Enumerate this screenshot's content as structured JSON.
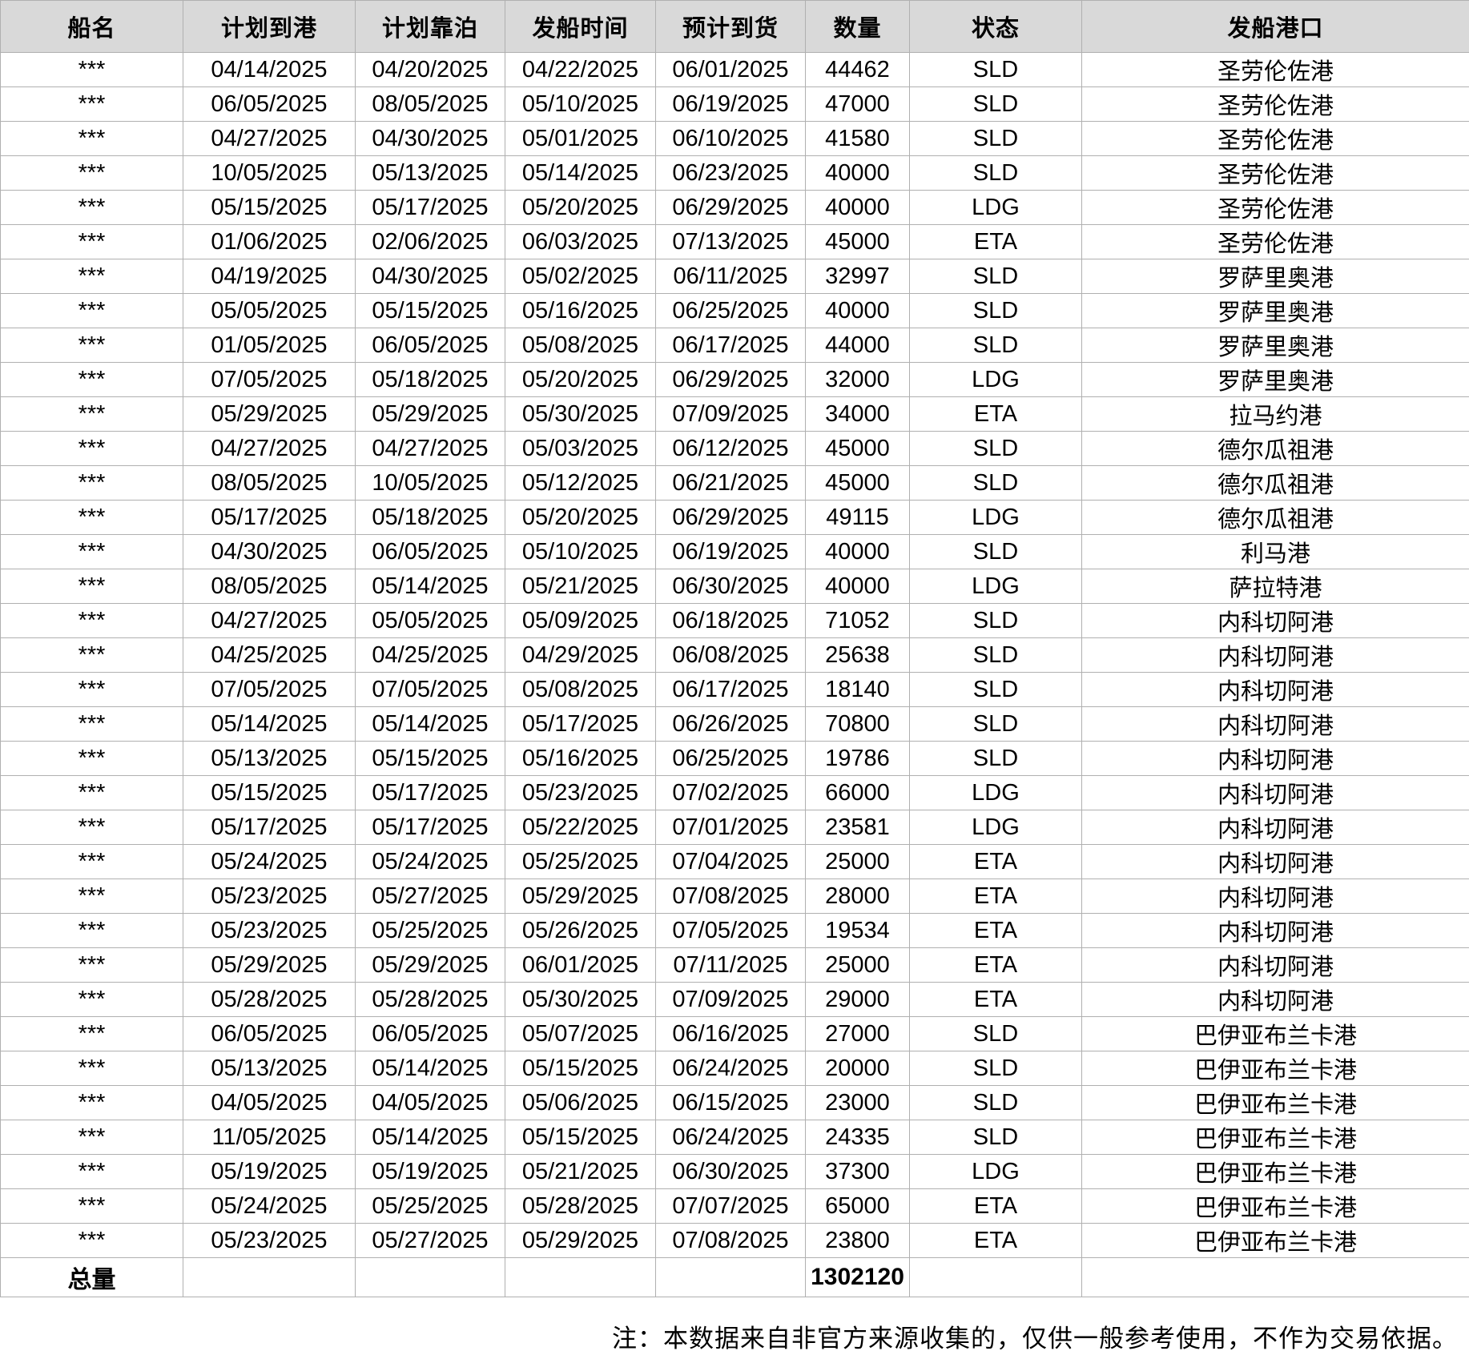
{
  "colors": {
    "header_bg": "#d9d9d9",
    "border": "#b0b0b0",
    "text": "#000000",
    "row_bg": "#ffffff"
  },
  "table": {
    "columns": [
      "船名",
      "计划到港",
      "计划靠泊",
      "发船时间",
      "预计到货",
      "数量",
      "状态",
      "发船港口"
    ],
    "rows": [
      [
        "***",
        "04/14/2025",
        "04/20/2025",
        "04/22/2025",
        "06/01/2025",
        "44462",
        "SLD",
        "圣劳伦佐港"
      ],
      [
        "***",
        "06/05/2025",
        "08/05/2025",
        "05/10/2025",
        "06/19/2025",
        "47000",
        "SLD",
        "圣劳伦佐港"
      ],
      [
        "***",
        "04/27/2025",
        "04/30/2025",
        "05/01/2025",
        "06/10/2025",
        "41580",
        "SLD",
        "圣劳伦佐港"
      ],
      [
        "***",
        "10/05/2025",
        "05/13/2025",
        "05/14/2025",
        "06/23/2025",
        "40000",
        "SLD",
        "圣劳伦佐港"
      ],
      [
        "***",
        "05/15/2025",
        "05/17/2025",
        "05/20/2025",
        "06/29/2025",
        "40000",
        "LDG",
        "圣劳伦佐港"
      ],
      [
        "***",
        "01/06/2025",
        "02/06/2025",
        "06/03/2025",
        "07/13/2025",
        "45000",
        "ETA",
        "圣劳伦佐港"
      ],
      [
        "***",
        "04/19/2025",
        "04/30/2025",
        "05/02/2025",
        "06/11/2025",
        "32997",
        "SLD",
        "罗萨里奥港"
      ],
      [
        "***",
        "05/05/2025",
        "05/15/2025",
        "05/16/2025",
        "06/25/2025",
        "40000",
        "SLD",
        "罗萨里奥港"
      ],
      [
        "***",
        "01/05/2025",
        "06/05/2025",
        "05/08/2025",
        "06/17/2025",
        "44000",
        "SLD",
        "罗萨里奥港"
      ],
      [
        "***",
        "07/05/2025",
        "05/18/2025",
        "05/20/2025",
        "06/29/2025",
        "32000",
        "LDG",
        "罗萨里奥港"
      ],
      [
        "***",
        "05/29/2025",
        "05/29/2025",
        "05/30/2025",
        "07/09/2025",
        "34000",
        "ETA",
        "拉马约港"
      ],
      [
        "***",
        "04/27/2025",
        "04/27/2025",
        "05/03/2025",
        "06/12/2025",
        "45000",
        "SLD",
        "德尔瓜祖港"
      ],
      [
        "***",
        "08/05/2025",
        "10/05/2025",
        "05/12/2025",
        "06/21/2025",
        "45000",
        "SLD",
        "德尔瓜祖港"
      ],
      [
        "***",
        "05/17/2025",
        "05/18/2025",
        "05/20/2025",
        "06/29/2025",
        "49115",
        "LDG",
        "德尔瓜祖港"
      ],
      [
        "***",
        "04/30/2025",
        "06/05/2025",
        "05/10/2025",
        "06/19/2025",
        "40000",
        "SLD",
        "利马港"
      ],
      [
        "***",
        "08/05/2025",
        "05/14/2025",
        "05/21/2025",
        "06/30/2025",
        "40000",
        "LDG",
        "萨拉特港"
      ],
      [
        "***",
        "04/27/2025",
        "05/05/2025",
        "05/09/2025",
        "06/18/2025",
        "71052",
        "SLD",
        "内科切阿港"
      ],
      [
        "***",
        "04/25/2025",
        "04/25/2025",
        "04/29/2025",
        "06/08/2025",
        "25638",
        "SLD",
        "内科切阿港"
      ],
      [
        "***",
        "07/05/2025",
        "07/05/2025",
        "05/08/2025",
        "06/17/2025",
        "18140",
        "SLD",
        "内科切阿港"
      ],
      [
        "***",
        "05/14/2025",
        "05/14/2025",
        "05/17/2025",
        "06/26/2025",
        "70800",
        "SLD",
        "内科切阿港"
      ],
      [
        "***",
        "05/13/2025",
        "05/15/2025",
        "05/16/2025",
        "06/25/2025",
        "19786",
        "SLD",
        "内科切阿港"
      ],
      [
        "***",
        "05/15/2025",
        "05/17/2025",
        "05/23/2025",
        "07/02/2025",
        "66000",
        "LDG",
        "内科切阿港"
      ],
      [
        "***",
        "05/17/2025",
        "05/17/2025",
        "05/22/2025",
        "07/01/2025",
        "23581",
        "LDG",
        "内科切阿港"
      ],
      [
        "***",
        "05/24/2025",
        "05/24/2025",
        "05/25/2025",
        "07/04/2025",
        "25000",
        "ETA",
        "内科切阿港"
      ],
      [
        "***",
        "05/23/2025",
        "05/27/2025",
        "05/29/2025",
        "07/08/2025",
        "28000",
        "ETA",
        "内科切阿港"
      ],
      [
        "***",
        "05/23/2025",
        "05/25/2025",
        "05/26/2025",
        "07/05/2025",
        "19534",
        "ETA",
        "内科切阿港"
      ],
      [
        "***",
        "05/29/2025",
        "05/29/2025",
        "06/01/2025",
        "07/11/2025",
        "25000",
        "ETA",
        "内科切阿港"
      ],
      [
        "***",
        "05/28/2025",
        "05/28/2025",
        "05/30/2025",
        "07/09/2025",
        "29000",
        "ETA",
        "内科切阿港"
      ],
      [
        "***",
        "06/05/2025",
        "06/05/2025",
        "05/07/2025",
        "06/16/2025",
        "27000",
        "SLD",
        "巴伊亚布兰卡港"
      ],
      [
        "***",
        "05/13/2025",
        "05/14/2025",
        "05/15/2025",
        "06/24/2025",
        "20000",
        "SLD",
        "巴伊亚布兰卡港"
      ],
      [
        "***",
        "04/05/2025",
        "04/05/2025",
        "05/06/2025",
        "06/15/2025",
        "23000",
        "SLD",
        "巴伊亚布兰卡港"
      ],
      [
        "***",
        "11/05/2025",
        "05/14/2025",
        "05/15/2025",
        "06/24/2025",
        "24335",
        "SLD",
        "巴伊亚布兰卡港"
      ],
      [
        "***",
        "05/19/2025",
        "05/19/2025",
        "05/21/2025",
        "06/30/2025",
        "37300",
        "LDG",
        "巴伊亚布兰卡港"
      ],
      [
        "***",
        "05/24/2025",
        "05/25/2025",
        "05/28/2025",
        "07/07/2025",
        "65000",
        "ETA",
        "巴伊亚布兰卡港"
      ],
      [
        "***",
        "05/23/2025",
        "05/27/2025",
        "05/29/2025",
        "07/08/2025",
        "23800",
        "ETA",
        "巴伊亚布兰卡港"
      ]
    ],
    "total_row": {
      "label": "总量",
      "total_quantity": "1302120"
    }
  },
  "footer": {
    "note": "注：本数据来自非官方来源收集的，仅供一般参考使用，不作为交易依据。"
  }
}
